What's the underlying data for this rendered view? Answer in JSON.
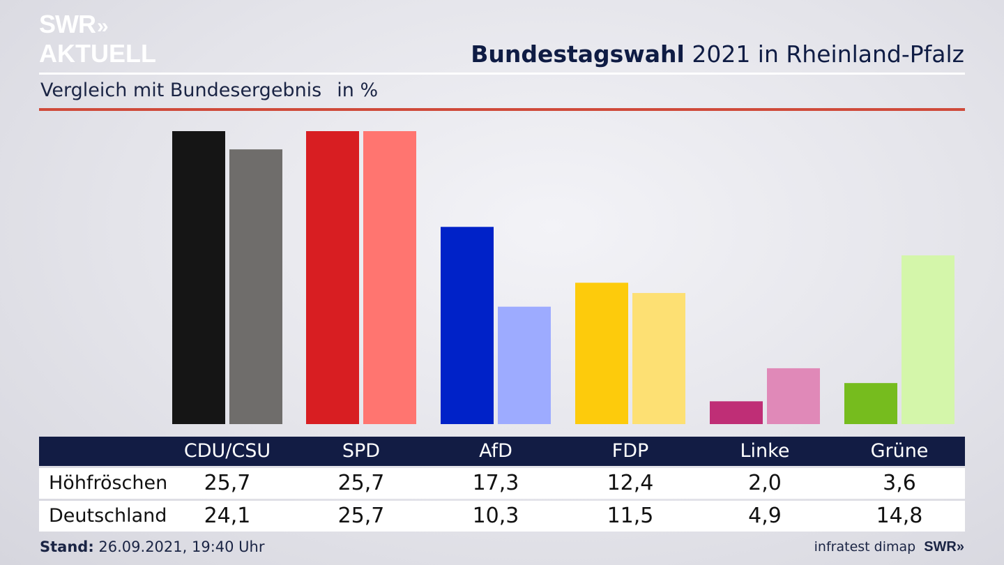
{
  "logo": {
    "line1": "SWR",
    "chevrons": "»",
    "line2": "AKTUELL"
  },
  "headline": {
    "bold": "Bundestagswahl",
    "rest": " 2021 in Rheinland-Pfalz"
  },
  "subtitle": {
    "text": "Vergleich mit Bundesergebnis",
    "unit": "in %"
  },
  "colors": {
    "accent_rule": "#cf4a3a",
    "table_header": "#121c44"
  },
  "chart_data": {
    "type": "bar",
    "categories": [
      "CDU/CSU",
      "SPD",
      "AfD",
      "FDP",
      "Linke",
      "Grüne"
    ],
    "series": [
      {
        "name": "Höhfröschen",
        "values": [
          25.7,
          25.7,
          17.3,
          12.4,
          2.0,
          3.6
        ],
        "colors": [
          "#151515",
          "#d81e22",
          "#0022c8",
          "#fdcb0c",
          "#bf2e76",
          "#76bc1e"
        ]
      },
      {
        "name": "Deutschland",
        "values": [
          24.1,
          25.7,
          10.3,
          11.5,
          4.9,
          14.8
        ],
        "colors": [
          "#6f6d6b",
          "#ff7570",
          "#9dabff",
          "#fde073",
          "#e089b8",
          "#d4f6aa"
        ]
      }
    ],
    "title": "Bundestagswahl 2021 in Rheinland-Pfalz",
    "subtitle": "Vergleich mit Bundesergebnis",
    "ylabel": "in %",
    "ylim": [
      0,
      25.7
    ],
    "grid": false
  },
  "table": {
    "headers": [
      "CDU/CSU",
      "SPD",
      "AfD",
      "FDP",
      "Linke",
      "Grüne"
    ],
    "rows": [
      {
        "label": "Höhfröschen",
        "values": [
          "25,7",
          "25,7",
          "17,3",
          "12,4",
          "2,0",
          "3,6"
        ]
      },
      {
        "label": "Deutschland",
        "values": [
          "24,1",
          "25,7",
          "10,3",
          "11,5",
          "4,9",
          "14,8"
        ]
      }
    ]
  },
  "footer": {
    "stand_label": "Stand:",
    "stand_value": " 26.09.2021, 19:40 Uhr",
    "source": "infratest dimap",
    "brand": "SWR»"
  }
}
